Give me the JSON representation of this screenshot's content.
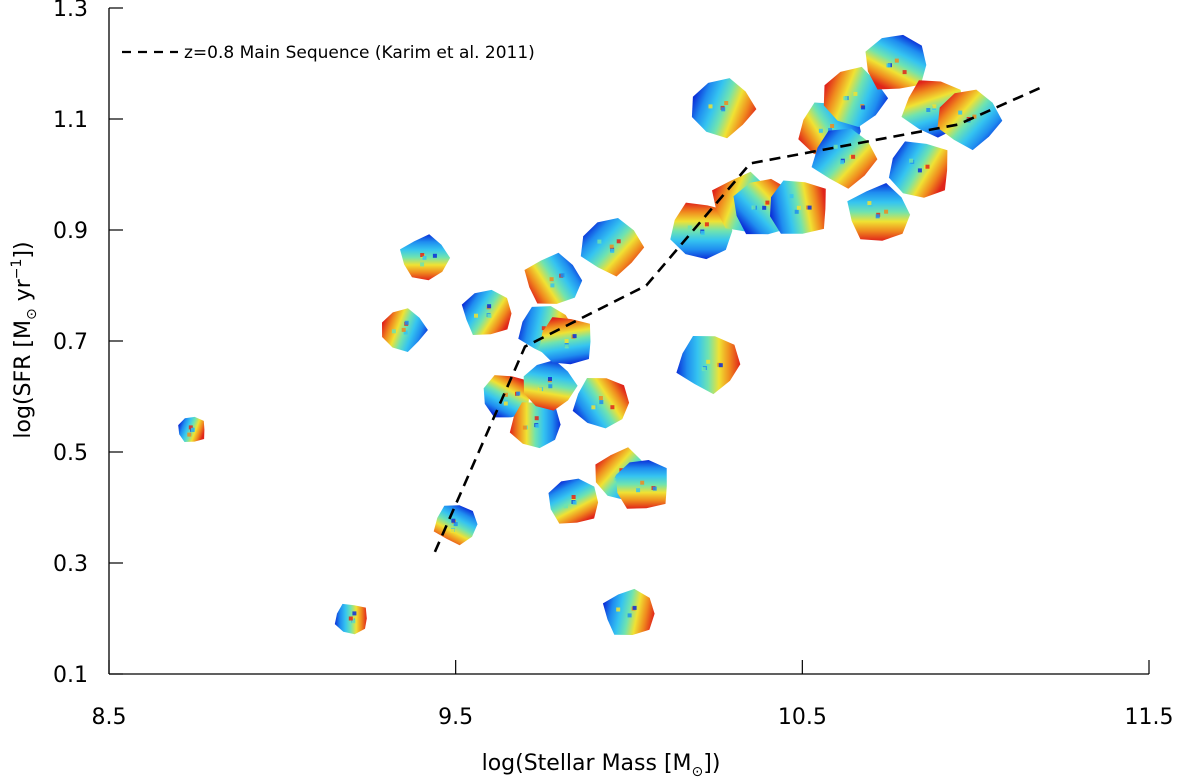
{
  "chart_data": {
    "type": "scatter",
    "title": "",
    "xlabel": {
      "main": "log(Stellar Mass [M",
      "sub": "⊙",
      "tail": "])"
    },
    "ylabel": {
      "main": "log(SFR [M",
      "sub": "⊙",
      "mid": " yr",
      "sup": "−1",
      "tail": "])"
    },
    "xlim": [
      8.5,
      11.5
    ],
    "ylim": [
      0.1,
      1.3
    ],
    "xticks": [
      "8.5",
      "9.5",
      "10.5",
      "11.5"
    ],
    "yticks": [
      "0.1",
      "0.3",
      "0.5",
      "0.7",
      "0.9",
      "1.1",
      "1.3"
    ],
    "grid": false,
    "legend": {
      "position": "top-left",
      "label": "z=0.8 Main Sequence (Karim et al. 2011)",
      "line_style": "dashed",
      "color": "#000000"
    },
    "main_sequence": {
      "name": "z=0.8 Main Sequence (Karim et al. 2011)",
      "x": [
        9.44,
        9.7,
        10.05,
        10.35,
        10.95,
        11.2
      ],
      "y": [
        0.32,
        0.69,
        0.8,
        1.02,
        1.09,
        1.16
      ]
    },
    "galaxies": {
      "marker": "velocity-map",
      "colors": [
        "#0b2fd8",
        "#1f8df0",
        "#35c4f0",
        "#6fe3b0",
        "#f0e233",
        "#f08a1e",
        "#e0241a"
      ],
      "x": [
        8.74,
        9.2,
        9.5,
        9.35,
        9.41,
        9.59,
        9.65,
        9.73,
        9.76,
        9.77,
        9.78,
        9.84,
        9.82,
        9.92,
        9.95,
        9.98,
        10.0,
        10.04,
        10.21,
        10.23,
        10.27,
        10.33,
        10.39,
        10.49,
        10.58,
        10.62,
        10.65,
        10.72,
        10.77,
        10.84,
        10.88,
        10.98
      ],
      "y": [
        0.54,
        0.2,
        0.37,
        0.72,
        0.85,
        0.75,
        0.6,
        0.55,
        0.72,
        0.62,
        0.81,
        0.41,
        0.7,
        0.59,
        0.87,
        0.46,
        0.21,
        0.44,
        0.9,
        0.66,
        1.12,
        0.95,
        0.94,
        0.94,
        1.08,
        1.03,
        1.14,
        0.93,
        1.2,
        1.01,
        1.12,
        1.1
      ],
      "direction": [
        20,
        0,
        120,
        200,
        90,
        30,
        300,
        180,
        10,
        100,
        150,
        60,
        260,
        330,
        40,
        220,
        10,
        90,
        270,
        0,
        20,
        200,
        320,
        350,
        150,
        40,
        200,
        90,
        120,
        30,
        250,
        220
      ]
    }
  }
}
